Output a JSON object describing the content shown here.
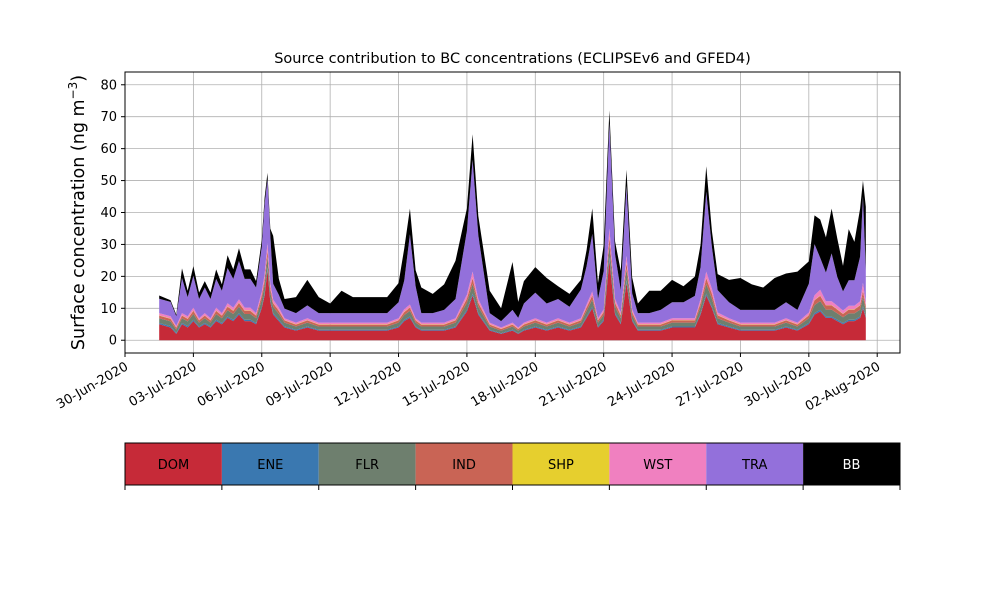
{
  "chart_data": {
    "type": "area",
    "stacked": true,
    "title": "Source contribution to BC concentrations (ECLIPSEv6 and GFED4)",
    "ylabel": "Surface concentration (ng m⁻³)",
    "ylabel_main": "Surface concentration (ng m",
    "ylabel_sup": "−3",
    "ylabel_close": ")",
    "xlabel": "",
    "xlim": [
      "2020-06-30",
      "2020-08-03"
    ],
    "ylim": [
      -4,
      84
    ],
    "yticks": [
      0,
      10,
      20,
      30,
      40,
      50,
      60,
      70,
      80
    ],
    "xticks": [
      "2020-06-30",
      "2020-07-03",
      "2020-07-06",
      "2020-07-09",
      "2020-07-12",
      "2020-07-15",
      "2020-07-18",
      "2020-07-21",
      "2020-07-24",
      "2020-07-27",
      "2020-07-30",
      "2020-08-02"
    ],
    "xtick_labels": [
      "30-Jun-2020",
      "03-Jul-2020",
      "06-Jul-2020",
      "09-Jul-2020",
      "12-Jul-2020",
      "15-Jul-2020",
      "18-Jul-2020",
      "21-Jul-2020",
      "24-Jul-2020",
      "27-Jul-2020",
      "30-Jul-2020",
      "02-Aug-2020"
    ],
    "grid": true,
    "legend_placement": "below",
    "sources": [
      {
        "name": "DOM",
        "color": "#c62a38",
        "text_color": "#000000"
      },
      {
        "name": "ENE",
        "color": "#3a78b0",
        "text_color": "#000000"
      },
      {
        "name": "FLR",
        "color": "#6e7f6e",
        "text_color": "#000000"
      },
      {
        "name": "IND",
        "color": "#c96455",
        "text_color": "#000000"
      },
      {
        "name": "SHP",
        "color": "#e6cf2e",
        "text_color": "#000000"
      },
      {
        "name": "WST",
        "color": "#f080c0",
        "text_color": "#000000"
      },
      {
        "name": "TRA",
        "color": "#9370db",
        "text_color": "#000000"
      },
      {
        "name": "BB",
        "color": "#000000",
        "text_color": "#ffffff"
      }
    ],
    "x": [
      "2020-07-01T12",
      "2020-07-02T00",
      "2020-07-02T06",
      "2020-07-02T12",
      "2020-07-02T18",
      "2020-07-03T00",
      "2020-07-03T06",
      "2020-07-03T12",
      "2020-07-03T18",
      "2020-07-04T00",
      "2020-07-04T06",
      "2020-07-04T12",
      "2020-07-04T18",
      "2020-07-05T00",
      "2020-07-05T06",
      "2020-07-05T12",
      "2020-07-05T18",
      "2020-07-06T00",
      "2020-07-06T03",
      "2020-07-06T06",
      "2020-07-06T09",
      "2020-07-06T12",
      "2020-07-06T18",
      "2020-07-07T00",
      "2020-07-07T12",
      "2020-07-08T00",
      "2020-07-08T12",
      "2020-07-09T00",
      "2020-07-09T12",
      "2020-07-10T00",
      "2020-07-10T12",
      "2020-07-11T00",
      "2020-07-11T12",
      "2020-07-12T00",
      "2020-07-12T06",
      "2020-07-12T12",
      "2020-07-12T18",
      "2020-07-13T00",
      "2020-07-13T12",
      "2020-07-14T00",
      "2020-07-14T12",
      "2020-07-15T00",
      "2020-07-15T06",
      "2020-07-15T12",
      "2020-07-16T00",
      "2020-07-16T12",
      "2020-07-17T00",
      "2020-07-17T06",
      "2020-07-17T12",
      "2020-07-18T00",
      "2020-07-18T12",
      "2020-07-19T00",
      "2020-07-19T12",
      "2020-07-20T00",
      "2020-07-20T06",
      "2020-07-20T12",
      "2020-07-20T18",
      "2020-07-21T00",
      "2020-07-21T06",
      "2020-07-21T12",
      "2020-07-21T18",
      "2020-07-22T00",
      "2020-07-22T06",
      "2020-07-22T12",
      "2020-07-23T00",
      "2020-07-23T12",
      "2020-07-24T00",
      "2020-07-24T12",
      "2020-07-25T00",
      "2020-07-25T06",
      "2020-07-25T12",
      "2020-07-25T18",
      "2020-07-26T00",
      "2020-07-26T12",
      "2020-07-27T00",
      "2020-07-27T12",
      "2020-07-28T00",
      "2020-07-28T12",
      "2020-07-29T00",
      "2020-07-29T12",
      "2020-07-30T00",
      "2020-07-30T06",
      "2020-07-30T12",
      "2020-07-30T18",
      "2020-07-31T00",
      "2020-07-31T06",
      "2020-07-31T12",
      "2020-07-31T18",
      "2020-08-01T00",
      "2020-08-01T06",
      "2020-08-01T09",
      "2020-08-01T12"
    ],
    "series": [
      {
        "name": "DOM",
        "values": [
          5,
          4,
          2,
          5,
          4,
          6,
          4,
          5,
          4,
          6,
          5,
          7,
          6,
          8,
          6,
          6,
          5,
          10,
          14,
          22,
          12,
          8,
          6,
          4,
          3,
          4,
          3,
          3,
          3,
          3,
          3,
          3,
          3,
          4,
          6,
          7,
          4,
          3,
          3,
          3,
          4,
          9,
          14,
          8,
          3,
          2,
          3,
          2,
          3,
          4,
          3,
          4,
          3,
          4,
          7,
          10,
          4,
          6,
          25,
          8,
          5,
          18,
          6,
          3,
          3,
          3,
          4,
          4,
          4,
          8,
          14,
          10,
          5,
          4,
          3,
          3,
          3,
          3,
          4,
          3,
          5,
          8,
          9,
          7,
          7,
          6,
          5,
          6,
          6,
          7,
          10,
          7
        ]
      },
      {
        "name": "ENE",
        "values": [
          0.4,
          0.4,
          0.3,
          0.4,
          0.4,
          0.4,
          0.3,
          0.4,
          0.3,
          0.4,
          0.4,
          0.4,
          0.4,
          0.5,
          0.4,
          0.4,
          0.4,
          0.5,
          0.6,
          0.8,
          0.6,
          0.5,
          0.4,
          0.3,
          0.3,
          0.3,
          0.3,
          0.3,
          0.3,
          0.3,
          0.3,
          0.3,
          0.3,
          0.3,
          0.4,
          0.4,
          0.3,
          0.3,
          0.3,
          0.3,
          0.3,
          0.5,
          0.6,
          0.5,
          0.3,
          0.2,
          0.3,
          0.2,
          0.3,
          0.3,
          0.3,
          0.3,
          0.3,
          0.3,
          0.4,
          0.5,
          0.3,
          0.4,
          1.0,
          0.5,
          0.4,
          0.8,
          0.4,
          0.3,
          0.3,
          0.3,
          0.3,
          0.3,
          0.3,
          0.5,
          0.6,
          0.5,
          0.4,
          0.3,
          0.3,
          0.3,
          0.3,
          0.3,
          0.3,
          0.3,
          0.4,
          0.5,
          0.5,
          0.4,
          0.4,
          0.4,
          0.4,
          0.4,
          0.4,
          0.4,
          0.6,
          0.4
        ]
      },
      {
        "name": "FLR",
        "values": [
          1.5,
          1.5,
          1,
          1.5,
          1.5,
          1.8,
          1.2,
          1.5,
          1.2,
          1.8,
          1.5,
          2,
          1.8,
          2,
          1.8,
          1.8,
          1.5,
          2.2,
          2.8,
          3.5,
          2.5,
          2,
          1.8,
          1.2,
          1,
          1.2,
          1,
          1,
          1,
          1,
          1,
          1,
          1,
          1.2,
          1.5,
          1.8,
          1.2,
          1,
          1,
          1,
          1.2,
          2.2,
          3,
          2,
          1,
          0.8,
          1,
          0.8,
          1,
          1.2,
          1,
          1.2,
          1,
          1.2,
          1.8,
          2.2,
          1.2,
          1.5,
          4,
          2,
          1.5,
          3.5,
          1.5,
          1,
          1,
          1,
          1.2,
          1.2,
          1.2,
          2,
          3,
          2.5,
          1.5,
          1.2,
          1,
          1,
          1,
          1,
          1.2,
          1,
          1.5,
          2.5,
          2.8,
          2.2,
          2.2,
          2,
          1.8,
          2,
          2,
          2.2,
          3,
          2
        ]
      },
      {
        "name": "IND",
        "values": [
          0.8,
          0.8,
          0.6,
          0.8,
          0.8,
          1,
          0.7,
          0.8,
          0.7,
          1,
          0.8,
          1.1,
          1,
          1.2,
          1,
          1,
          0.8,
          1.3,
          1.6,
          2,
          1.4,
          1.1,
          1,
          0.7,
          0.6,
          0.7,
          0.6,
          0.6,
          0.6,
          0.6,
          0.6,
          0.6,
          0.6,
          0.7,
          0.9,
          1,
          0.7,
          0.6,
          0.6,
          0.6,
          0.7,
          1.3,
          1.8,
          1.2,
          0.6,
          0.5,
          0.6,
          0.5,
          0.6,
          0.7,
          0.6,
          0.7,
          0.6,
          0.7,
          1,
          1.3,
          0.7,
          0.9,
          2.4,
          1.2,
          0.9,
          2,
          0.9,
          0.6,
          0.6,
          0.6,
          0.7,
          0.7,
          0.7,
          1.2,
          1.8,
          1.5,
          0.9,
          0.7,
          0.6,
          0.6,
          0.6,
          0.6,
          0.7,
          0.6,
          0.9,
          1.5,
          1.6,
          1.3,
          1.3,
          1.2,
          1,
          1.2,
          1.2,
          1.3,
          1.8,
          1.2
        ]
      },
      {
        "name": "SHP",
        "values": [
          0.1,
          0.1,
          0.1,
          0.1,
          0.1,
          0.1,
          0.1,
          0.1,
          0.1,
          0.1,
          0.1,
          0.1,
          0.1,
          0.1,
          0.1,
          0.1,
          0.1,
          0.1,
          0.1,
          0.1,
          0.1,
          0.1,
          0.1,
          0.1,
          0.1,
          0.1,
          0.1,
          0.1,
          0.1,
          0.1,
          0.1,
          0.1,
          0.1,
          0.1,
          0.1,
          0.1,
          0.1,
          0.1,
          0.1,
          0.1,
          0.1,
          0.1,
          0.1,
          0.1,
          0.1,
          0.1,
          0.1,
          0.1,
          0.1,
          0.1,
          0.1,
          0.1,
          0.1,
          0.1,
          0.1,
          0.1,
          0.1,
          0.1,
          0.1,
          0.1,
          0.1,
          0.1,
          0.1,
          0.1,
          0.1,
          0.1,
          0.1,
          0.1,
          0.1,
          0.1,
          0.1,
          0.1,
          0.1,
          0.1,
          0.1,
          0.1,
          0.1,
          0.1,
          0.1,
          0.1,
          0.1,
          0.1,
          0.1,
          0.1,
          0.1,
          0.1,
          0.1,
          0.1,
          0.1,
          0.1,
          0.1,
          0.1
        ]
      },
      {
        "name": "WST",
        "values": [
          0.7,
          0.7,
          0.5,
          0.7,
          0.7,
          0.9,
          0.6,
          0.7,
          0.6,
          0.9,
          0.7,
          1,
          0.9,
          1,
          0.9,
          0.9,
          0.7,
          1.2,
          1.5,
          2,
          1.3,
          1,
          0.9,
          0.6,
          0.5,
          0.6,
          0.5,
          0.5,
          0.5,
          0.5,
          0.5,
          0.5,
          0.5,
          0.6,
          0.8,
          0.9,
          0.6,
          0.5,
          0.5,
          0.5,
          0.6,
          1.2,
          2,
          1.1,
          0.5,
          0.4,
          0.5,
          0.4,
          0.5,
          0.6,
          0.5,
          0.6,
          0.5,
          0.6,
          0.9,
          1.2,
          0.6,
          0.8,
          2.5,
          1.1,
          0.8,
          2,
          0.8,
          0.5,
          0.5,
          0.5,
          0.6,
          0.6,
          0.6,
          1.1,
          2,
          1.5,
          0.8,
          0.6,
          0.5,
          0.5,
          0.5,
          0.5,
          0.6,
          0.5,
          0.8,
          1.5,
          1.8,
          1.2,
          1.2,
          1.1,
          1,
          1.1,
          1.1,
          1.2,
          2.5,
          1.1
        ]
      },
      {
        "name": "TRA",
        "values": [
          4.5,
          4.5,
          3,
          11,
          6,
          10,
          6,
          8,
          6,
          9,
          7,
          11,
          9,
          12,
          9,
          9,
          8,
          14,
          22,
          20,
          15,
          5,
          4,
          3,
          3,
          4,
          3,
          3,
          3,
          3,
          3,
          3,
          3,
          5,
          9,
          22,
          10,
          3,
          3,
          4,
          6,
          20,
          35,
          20,
          3,
          2,
          4,
          3,
          6,
          8,
          6,
          6,
          5,
          9,
          12,
          18,
          6,
          12,
          33,
          14,
          7,
          22,
          5,
          3,
          3,
          4,
          5,
          5,
          7,
          10,
          25,
          13,
          7,
          5,
          4,
          4,
          4,
          4,
          5,
          4,
          9,
          16,
          10,
          9,
          15,
          9,
          6,
          8,
          8,
          14,
          27,
          10
        ]
      },
      {
        "name": "BB",
        "values": [
          1,
          0.5,
          0.5,
          3,
          2,
          3,
          2,
          2,
          2,
          3,
          2,
          4,
          3,
          4,
          3,
          3,
          2,
          2,
          2,
          2,
          2,
          15,
          5,
          3,
          5,
          8,
          5,
          3,
          7,
          5,
          5,
          5,
          5,
          6,
          10,
          8,
          5,
          8,
          6,
          8,
          12,
          7,
          8,
          6,
          7,
          4,
          15,
          5,
          7,
          8,
          8,
          4,
          4,
          3,
          5,
          8,
          5,
          8,
          4,
          4,
          6,
          5,
          5,
          3,
          7,
          6,
          7,
          5,
          6,
          7,
          8,
          5,
          5,
          7,
          10,
          8,
          7,
          10,
          9,
          12,
          7,
          9,
          12,
          11,
          14,
          12,
          8,
          16,
          12,
          15,
          5,
          20
        ]
      }
    ]
  }
}
